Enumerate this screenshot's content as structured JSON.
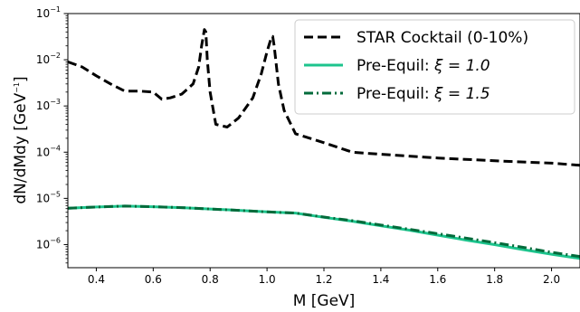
{
  "chart_data": {
    "type": "line",
    "xlabel": "M [GeV]",
    "ylabel": {
      "main": "dN/dMdy [GeV",
      "sup": "−1",
      "tail": "]"
    },
    "xlim": [
      0.3,
      2.1
    ],
    "ylim_log10": [
      -6.5,
      -1
    ],
    "y_scale": "log",
    "grid": false,
    "legend_position": "top-right",
    "x_ticks": [
      0.4,
      0.6,
      0.8,
      1.0,
      1.2,
      1.4,
      1.6,
      1.8,
      2.0
    ],
    "x_tick_labels": [
      "0.4",
      "0.6",
      "0.8",
      "1.0",
      "1.2",
      "1.4",
      "1.6",
      "1.8",
      "2.0"
    ],
    "y_ticks_exp": [
      -6,
      -5,
      -4,
      -3,
      -2,
      -1
    ],
    "y_tick_labels": [
      "−6",
      "−5",
      "−4",
      "−3",
      "−2",
      "−1"
    ],
    "y_tick_base": "10",
    "series": [
      {
        "name": "STAR Cocktail (0-10%)",
        "color": "#000000",
        "style": "dashed",
        "x": [
          0.3,
          0.35,
          0.4,
          0.45,
          0.5,
          0.55,
          0.6,
          0.63,
          0.66,
          0.7,
          0.74,
          0.76,
          0.77,
          0.78,
          0.785,
          0.79,
          0.8,
          0.82,
          0.86,
          0.9,
          0.95,
          0.98,
          1.0,
          1.015,
          1.02,
          1.025,
          1.04,
          1.06,
          1.1,
          1.2,
          1.3,
          1.4,
          1.6,
          1.8,
          2.0,
          2.1
        ],
        "y": [
          0.009,
          0.007,
          0.0045,
          0.003,
          0.0021,
          0.0021,
          0.002,
          0.0014,
          0.0015,
          0.0018,
          0.003,
          0.007,
          0.02,
          0.045,
          0.04,
          0.01,
          0.002,
          0.0004,
          0.00035,
          0.00055,
          0.0015,
          0.005,
          0.015,
          0.03,
          0.032,
          0.02,
          0.003,
          0.0008,
          0.00025,
          0.00016,
          0.0001,
          9e-05,
          7.5e-05,
          6.5e-05,
          5.8e-05,
          5.2e-05
        ]
      },
      {
        "name": "Pre-Equil: ξ = 1.0",
        "color": "#1dc48d",
        "style": "solid",
        "x": [
          0.3,
          0.4,
          0.5,
          0.6,
          0.7,
          0.8,
          0.9,
          1.0,
          1.1,
          1.2,
          1.3,
          1.4,
          1.5,
          1.6,
          1.7,
          1.8,
          1.9,
          2.0,
          2.1
        ],
        "y": [
          6.1e-06,
          6.5e-06,
          6.8e-06,
          6.6e-06,
          6.3e-06,
          5.9e-06,
          5.5e-06,
          5.1e-06,
          4.8e-06,
          3.9e-06,
          3.2e-06,
          2.55e-06,
          2.05e-06,
          1.6e-06,
          1.25e-06,
          1e-06,
          7.8e-07,
          6.2e-07,
          5e-07
        ]
      },
      {
        "name": "Pre-Equil: ξ = 1.5",
        "color": "#036b3b",
        "style": "dashdot",
        "x": [
          0.3,
          0.4,
          0.5,
          0.6,
          0.7,
          0.8,
          0.9,
          1.0,
          1.1,
          1.2,
          1.3,
          1.4,
          1.5,
          1.6,
          1.7,
          1.8,
          1.9,
          2.0,
          2.1
        ],
        "y": [
          6.1e-06,
          6.5e-06,
          6.8e-06,
          6.6e-06,
          6.3e-06,
          5.9e-06,
          5.5e-06,
          5.1e-06,
          4.8e-06,
          3.95e-06,
          3.3e-06,
          2.65e-06,
          2.15e-06,
          1.72e-06,
          1.38e-06,
          1.1e-06,
          8.7e-07,
          6.8e-07,
          5.5e-07
        ]
      }
    ],
    "legend": {
      "labels": [
        "STAR Cocktail (0-10%)",
        "Pre-Equil: ",
        "Pre-Equil: "
      ],
      "math": [
        "",
        "ξ = 1.0",
        "ξ = 1.5"
      ]
    }
  }
}
